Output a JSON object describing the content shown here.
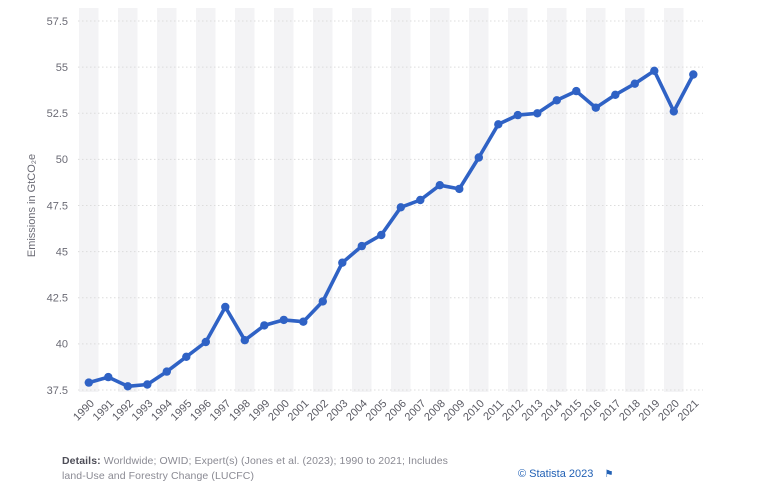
{
  "chart_data": {
    "type": "line",
    "title": "",
    "xlabel": "",
    "ylabel": "Emissions in GtCO₂e",
    "ylim": [
      37.5,
      57.5
    ],
    "yticks": [
      37.5,
      40,
      42.5,
      45,
      47.5,
      50,
      52.5,
      55,
      57.5
    ],
    "grid": true,
    "legend": "none",
    "line_color": "#2f62c5",
    "categories": [
      "1990",
      "1991",
      "1992",
      "1993",
      "1994",
      "1995",
      "1996",
      "1997",
      "1998",
      "1999",
      "2000",
      "2001",
      "2002",
      "2003",
      "2004",
      "2005",
      "2006",
      "2007",
      "2008",
      "2009",
      "2010",
      "2011",
      "2012",
      "2013",
      "2014",
      "2015",
      "2016",
      "2017",
      "2018",
      "2019",
      "2020",
      "2021"
    ],
    "values": [
      37.9,
      38.2,
      37.7,
      37.8,
      38.5,
      39.3,
      40.1,
      42.0,
      40.2,
      41.0,
      41.3,
      41.2,
      42.3,
      44.4,
      45.3,
      45.9,
      47.4,
      47.8,
      48.6,
      48.4,
      50.1,
      51.9,
      52.4,
      52.5,
      53.2,
      53.7,
      52.8,
      53.5,
      54.1,
      54.8,
      52.6,
      54.6
    ]
  },
  "footer": {
    "details_label": "Details:",
    "details_text": " Worldwide; OWID; Expert(s) (Jones et al. (2023); 1990 to 2021; Includes land-Use and Forestry Change (LUCFC)",
    "attribution": "© Statista 2023",
    "flag_glyph": "⚑"
  },
  "colors": {
    "line": "#2f62c5",
    "stripe": "#f3f3f5",
    "gridline": "#dcdcdc",
    "tick_text": "#6b6b75",
    "year_text": "#5b5b64",
    "axis_title": "#6b6b75",
    "details_text": "#8a8a93",
    "attribution_link": "#2261b5"
  }
}
